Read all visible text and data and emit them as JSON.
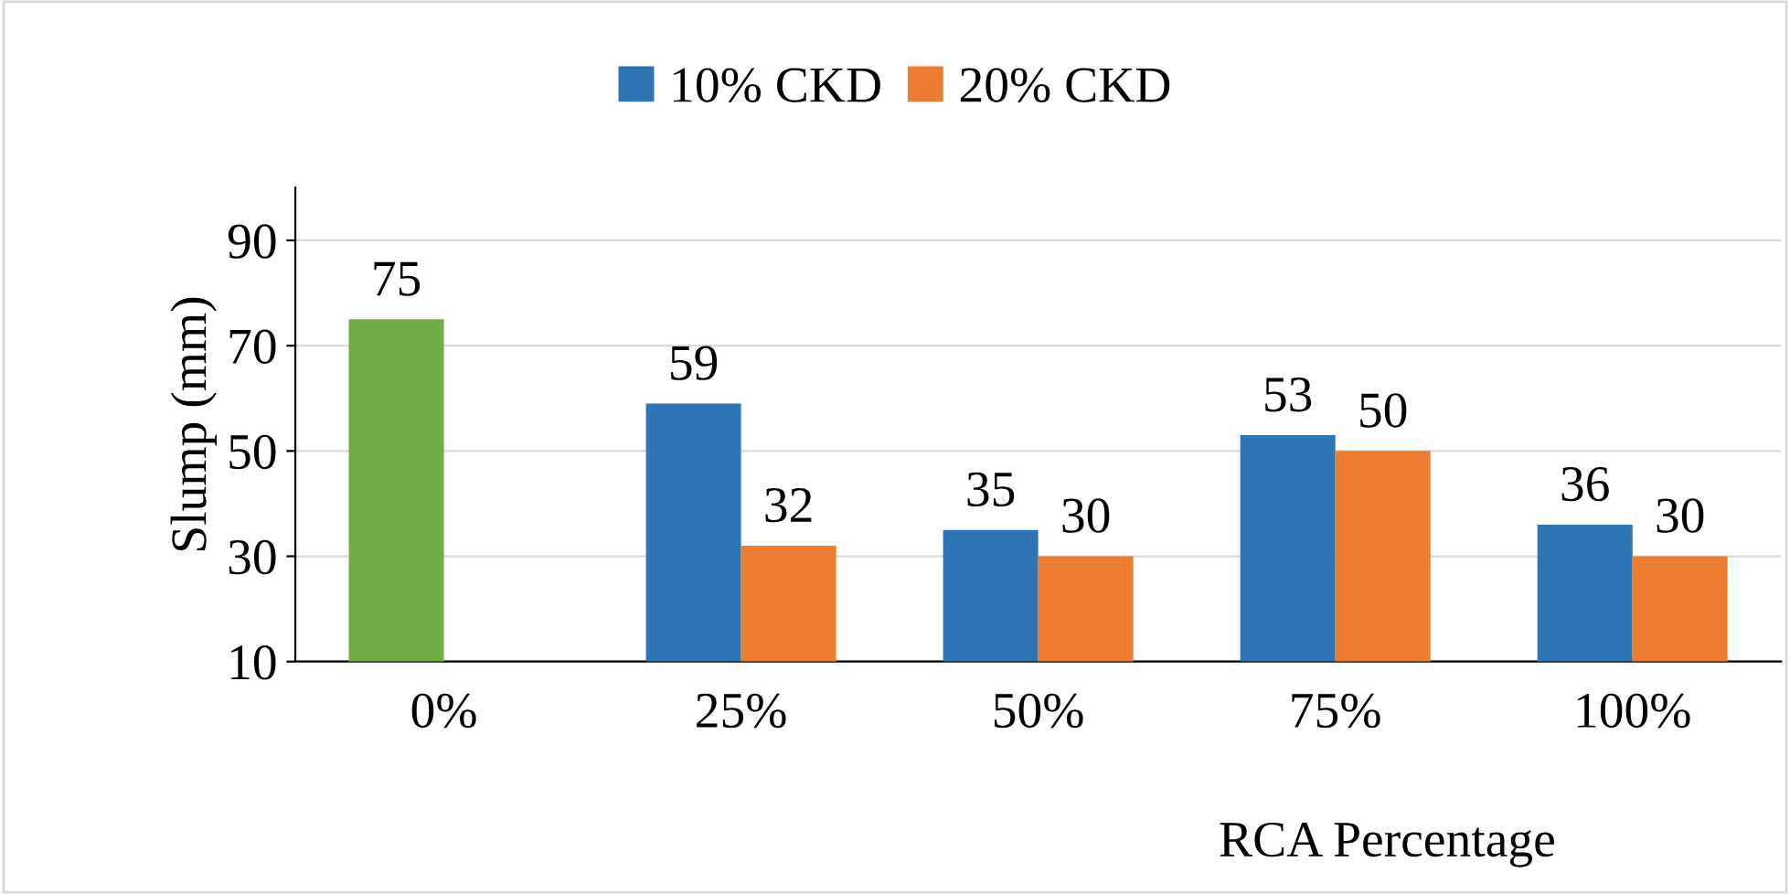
{
  "chart_data": {
    "type": "bar",
    "xlabel": "RCA Percentage",
    "ylabel": "Slump (mm)",
    "categories": [
      "0%",
      "25%",
      "50%",
      "75%",
      "100%"
    ],
    "series": [
      {
        "name": "10% CKD",
        "color": "#2e75b6",
        "colors": [
          "#70ad47",
          "#2e75b6",
          "#2e75b6",
          "#2e75b6",
          "#2e75b6"
        ],
        "values": [
          75,
          59,
          35,
          53,
          36
        ]
      },
      {
        "name": "20% CKD",
        "color": "#ed7d31",
        "values": [
          null,
          32,
          30,
          50,
          30
        ]
      }
    ],
    "ylim": [
      10,
      100
    ],
    "yticks": [
      10,
      30,
      50,
      70,
      90
    ],
    "grid": "y",
    "legend": "top",
    "data_labels": true
  }
}
